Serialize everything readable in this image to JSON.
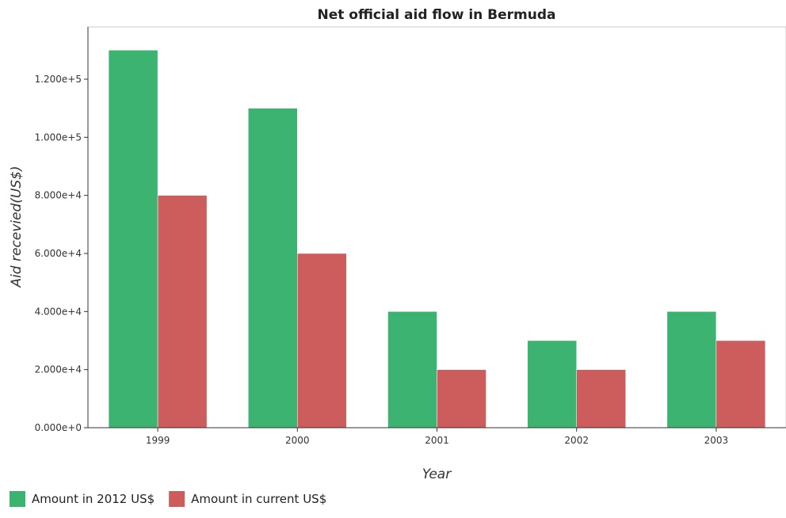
{
  "chart_data": {
    "type": "bar",
    "title": "Net official aid flow in Bermuda",
    "xlabel": "Year",
    "ylabel": "Aid recevied(US$)",
    "categories": [
      "1999",
      "2000",
      "2001",
      "2002",
      "2003"
    ],
    "series": [
      {
        "name": "Amount in 2012 US$",
        "color": "#3cb371",
        "values": [
          130000,
          110000,
          40000,
          30000,
          40000
        ]
      },
      {
        "name": "Amount in current US$",
        "color": "#cd5c5c",
        "values": [
          80000,
          60000,
          20000,
          20000,
          30000
        ]
      }
    ],
    "yticks": [
      0,
      20000,
      40000,
      60000,
      80000,
      100000,
      120000
    ],
    "ytick_labels": [
      "0.000e+0",
      "2.000e+4",
      "4.000e+4",
      "6.000e+4",
      "8.000e+4",
      "1.000e+5",
      "1.200e+5"
    ],
    "ylim": [
      0,
      138000
    ],
    "grid": false,
    "legend_position": "bottom-left"
  }
}
